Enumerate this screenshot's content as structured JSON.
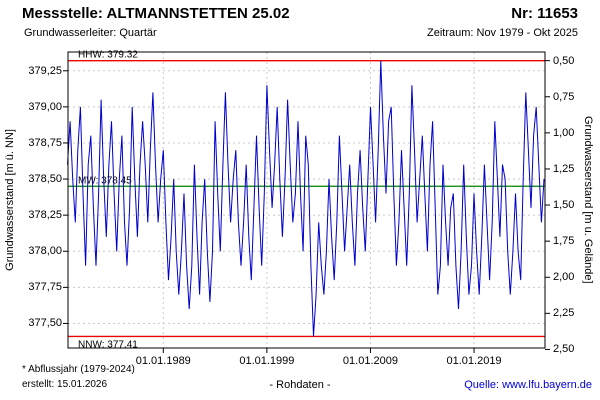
{
  "header": {
    "station_label": "Messstelle: ALTMANNSTETTEN 25.02",
    "number_label": "Nr: 11653",
    "aquifer_label": "Grundwasserleiter: Quartär",
    "period_label": "Zeitraum: Nov 1979 - Okt 2025"
  },
  "footer": {
    "note": "* Abflussjahr (1979-2024)",
    "created": "erstellt: 15.01.2026",
    "center": "- Rohdaten -",
    "source": "Quelle: www.lfu.bayern.de"
  },
  "colors": {
    "series": "#0000cc",
    "reference_red": "#ee0000",
    "reference_green": "#008000",
    "grid": "#c9c9c9",
    "link": "#0000dd"
  },
  "chart_data": {
    "type": "line",
    "ylabel_left": "Grundwasserstand [m ü. NN]",
    "ylabel_right": "Grundwasserstand [m u. Gelände]",
    "xlim": [
      1979.8,
      2025.85
    ],
    "ylim_left": [
      377.33,
      379.38
    ],
    "ground_level": 379.82,
    "grid": true,
    "x_tick_years": [
      1989,
      1999,
      2009,
      2019
    ],
    "x_tick_labels": [
      "01.01.1989",
      "01.01.1999",
      "01.01.2009",
      "01.01.2019"
    ],
    "left_ticks": [
      379.25,
      379.0,
      378.75,
      378.5,
      378.25,
      378.0,
      377.75,
      377.5
    ],
    "left_tick_labels": [
      "379,25",
      "379,00",
      "378,75",
      "378,50",
      "378,25",
      "378,00",
      "377,75",
      "377,50"
    ],
    "right_ticks": [
      0.5,
      0.75,
      1.0,
      1.25,
      1.5,
      1.75,
      2.0,
      2.25,
      2.5
    ],
    "right_tick_labels": [
      "0,50",
      "0,75",
      "1,00",
      "1,25",
      "1,50",
      "1,75",
      "2,00",
      "2,25",
      "2,50"
    ],
    "reference_lines": [
      {
        "name": "HHW",
        "label": "HHW: 379.32",
        "value": 379.32,
        "color": "#ee0000"
      },
      {
        "name": "MW",
        "label": "MW: 378.45",
        "value": 378.45,
        "color": "#008000"
      },
      {
        "name": "NNW",
        "label": "NNW: 377.41",
        "value": 377.41,
        "color": "#ee0000"
      }
    ],
    "series": [
      {
        "name": "Grundwasserstand Rohdaten",
        "color": "#0000cc",
        "x_start": 1979.75,
        "x_step": 0.25,
        "values": [
          378.6,
          378.9,
          378.5,
          378.2,
          378.7,
          379.0,
          378.4,
          377.9,
          378.6,
          378.8,
          378.3,
          377.9,
          378.4,
          379.05,
          378.5,
          378.1,
          378.6,
          378.9,
          378.4,
          378.0,
          378.5,
          378.8,
          378.2,
          377.9,
          378.3,
          379.0,
          378.5,
          378.1,
          378.6,
          378.9,
          378.6,
          378.2,
          378.7,
          379.1,
          378.6,
          378.2,
          378.5,
          378.7,
          378.2,
          377.8,
          378.1,
          378.5,
          378.0,
          377.7,
          378.0,
          378.4,
          377.9,
          377.6,
          377.9,
          378.6,
          378.1,
          377.7,
          378.2,
          378.5,
          378.0,
          377.65,
          378.0,
          378.9,
          378.4,
          378.0,
          378.6,
          379.1,
          378.6,
          378.2,
          378.5,
          378.7,
          378.2,
          377.9,
          378.2,
          378.6,
          378.1,
          377.8,
          378.3,
          378.8,
          378.3,
          377.9,
          378.4,
          379.15,
          378.7,
          378.3,
          378.6,
          379.0,
          378.5,
          378.1,
          378.5,
          379.05,
          378.6,
          378.2,
          378.4,
          378.9,
          378.4,
          378.0,
          378.8,
          378.6,
          377.9,
          377.41,
          377.7,
          378.2,
          377.9,
          377.7,
          378.0,
          378.5,
          378.1,
          377.8,
          378.2,
          378.8,
          378.4,
          378.0,
          378.3,
          378.6,
          378.2,
          377.9,
          378.4,
          378.7,
          378.3,
          378.0,
          378.5,
          379.0,
          378.6,
          378.2,
          378.7,
          379.32,
          378.8,
          378.4,
          378.9,
          379.0,
          378.4,
          377.9,
          378.2,
          378.7,
          378.3,
          377.9,
          378.4,
          379.15,
          378.7,
          378.2,
          378.5,
          378.8,
          378.4,
          378.0,
          378.6,
          378.9,
          378.3,
          377.7,
          377.9,
          378.6,
          378.2,
          377.9,
          378.3,
          378.4,
          377.9,
          377.6,
          378.0,
          378.6,
          378.1,
          377.7,
          377.9,
          378.4,
          378.0,
          377.7,
          378.1,
          378.6,
          378.2,
          377.8,
          378.2,
          378.9,
          378.5,
          378.1,
          378.6,
          378.5,
          378.0,
          377.7,
          378.0,
          378.4,
          378.0,
          377.8,
          378.5,
          379.1,
          378.7,
          378.3,
          378.8,
          379.0,
          378.6,
          378.2,
          378.5
        ]
      }
    ]
  }
}
